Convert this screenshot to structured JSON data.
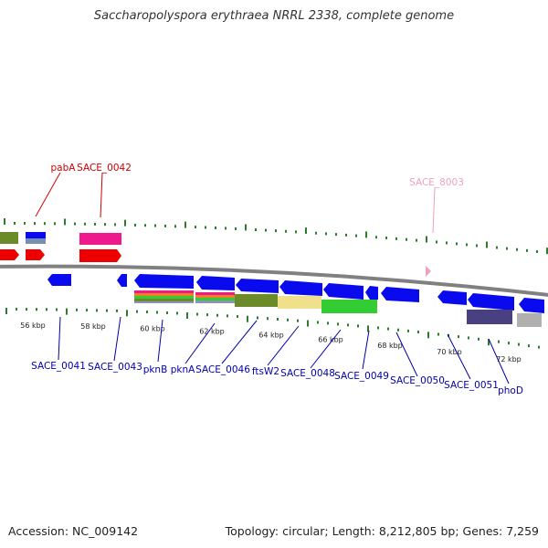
{
  "title": "Saccharopolyspora erythraea NRRL 2338, complete genome",
  "footer": {
    "accession": "Accession: NC_009142",
    "summary": "Topology: circular; Length: 8,212,805 bp; Genes: 7,259"
  },
  "colors": {
    "backbone": "#7f7f7f",
    "forward_label": "#cc0000",
    "reverse_label": "#0000aa",
    "faded_label": "#f0a0c0",
    "tick": "#2e7d2e",
    "cds_blue": "#0a0aee",
    "cds_red": "#ee0000",
    "cds_magenta": "#ee1a8c",
    "cds_olive": "#6b8a2a",
    "cds_khaki": "#f0e08c",
    "cds_green": "#33cc33",
    "cds_purple": "#484080",
    "cds_gray": "#b0b0b0"
  },
  "scale": {
    "unit": "kbp",
    "ticks": [
      {
        "value": 56,
        "label": "56 kbp"
      },
      {
        "value": 58,
        "label": "58 kbp"
      },
      {
        "value": 60,
        "label": "60 kbp"
      },
      {
        "value": 62,
        "label": "62 kbp"
      },
      {
        "value": 64,
        "label": "64 kbp"
      },
      {
        "value": 66,
        "label": "66 kbp"
      },
      {
        "value": 68,
        "label": "68 kbp"
      },
      {
        "value": 70,
        "label": "70 kbp"
      },
      {
        "value": 72,
        "label": "72 kbp"
      }
    ]
  },
  "gene_labels": {
    "forward": [
      "pabA",
      "SACE_0042",
      "SACE_8003"
    ],
    "reverse": [
      "SACE_0041",
      "SACE_0043",
      "pknB",
      "pknA",
      "SACE_0046",
      "ftsW2",
      "SACE_0048",
      "SACE_0049",
      "SACE_0050",
      "SACE_0051",
      "phoD"
    ]
  }
}
